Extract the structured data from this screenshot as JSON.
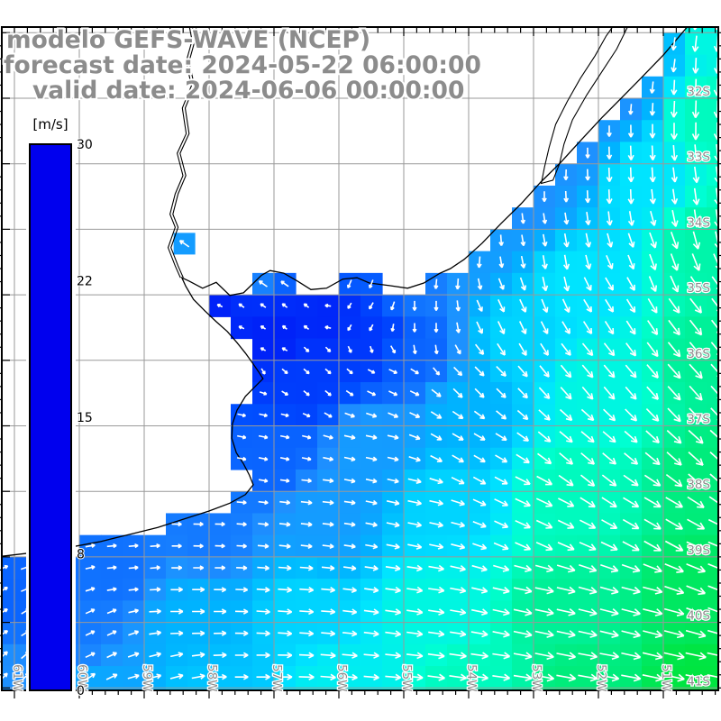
{
  "title": {
    "line1": "modelo GEFS-WAVE (NCEP)",
    "line2": "forecast date: 2024-05-22 06:00:00",
    "line3": "valid date: 2024-06-06 00:00:00",
    "color": "#8c8c8c"
  },
  "colorbar": {
    "unit_label": "[m/s]",
    "min": 0,
    "max": 30,
    "ticks": [
      {
        "label": "30",
        "value": 30
      },
      {
        "label": "22",
        "value": 22.5
      },
      {
        "label": "15",
        "value": 15
      },
      {
        "label": "8",
        "value": 7.5
      },
      {
        "label": "0",
        "value": 0
      }
    ],
    "stops": [
      [
        0,
        "#0000ee"
      ],
      [
        2,
        "#0022f8"
      ],
      [
        4,
        "#004eff"
      ],
      [
        5.5,
        "#1e90ff"
      ],
      [
        7,
        "#00b3ff"
      ],
      [
        8.5,
        "#00e4ff"
      ],
      [
        10,
        "#00ffd2"
      ],
      [
        11.5,
        "#00f096"
      ],
      [
        12.5,
        "#00e860"
      ],
      [
        14,
        "#00df00"
      ],
      [
        15.5,
        "#7dff00"
      ],
      [
        17,
        "#ffff00"
      ],
      [
        19,
        "#ffc800"
      ],
      [
        21,
        "#ff9400"
      ],
      [
        23,
        "#ff5200"
      ],
      [
        25,
        "#ff2000"
      ],
      [
        27,
        "#fb0030"
      ],
      [
        28.5,
        "#e30070"
      ],
      [
        30,
        "#c4009e"
      ]
    ]
  },
  "map": {
    "grid_color": "#999999",
    "label_color": "#8c8c8c",
    "lon_labels": [
      {
        "text": "61W",
        "lon": 61
      },
      {
        "text": "60W",
        "lon": 60
      },
      {
        "text": "59W",
        "lon": 59
      },
      {
        "text": "58W",
        "lon": 58
      },
      {
        "text": "57W",
        "lon": 57
      },
      {
        "text": "56W",
        "lon": 56
      },
      {
        "text": "55W",
        "lon": 55
      },
      {
        "text": "54W",
        "lon": 54
      },
      {
        "text": "53W",
        "lon": 53
      },
      {
        "text": "52W",
        "lon": 52
      },
      {
        "text": "51W",
        "lon": 51
      }
    ],
    "lat_labels": [
      {
        "text": "32S",
        "lat": 32
      },
      {
        "text": "33S",
        "lat": 33
      },
      {
        "text": "34S",
        "lat": 34
      },
      {
        "text": "35S",
        "lat": 35
      },
      {
        "text": "36S",
        "lat": 36
      },
      {
        "text": "37S",
        "lat": 37
      },
      {
        "text": "38S",
        "lat": 38
      },
      {
        "text": "39S",
        "lat": 39
      },
      {
        "text": "40S",
        "lat": 40
      },
      {
        "text": "41S",
        "lat": 41
      }
    ],
    "grid": {
      "lons": [
        61,
        60,
        59,
        58,
        57,
        56,
        55,
        54,
        53,
        52,
        51
      ],
      "lats": [
        31,
        32,
        33,
        34,
        35,
        36,
        37,
        38,
        39,
        40,
        41
      ],
      "minor_step": 0.2,
      "lon_range": [
        50.2,
        61.2
      ],
      "lat_range": [
        31.0,
        41.0
      ]
    },
    "coast": [
      [
        50.63,
        30.91
      ],
      [
        50.99,
        31.33
      ],
      [
        51.33,
        31.68
      ],
      [
        51.64,
        31.99
      ],
      [
        51.94,
        32.29
      ],
      [
        52.26,
        32.63
      ],
      [
        52.58,
        32.98
      ],
      [
        52.89,
        33.28
      ],
      [
        53.19,
        33.61
      ],
      [
        53.5,
        33.91
      ],
      [
        53.79,
        34.21
      ],
      [
        54.07,
        34.46
      ],
      [
        54.28,
        34.6
      ],
      [
        54.44,
        34.67
      ],
      [
        54.69,
        34.82
      ],
      [
        54.94,
        34.9
      ],
      [
        55.22,
        34.86
      ],
      [
        55.53,
        34.82
      ],
      [
        55.72,
        34.74
      ],
      [
        55.94,
        34.76
      ],
      [
        56.19,
        34.9
      ],
      [
        56.43,
        34.92
      ],
      [
        56.64,
        34.79
      ],
      [
        56.85,
        34.67
      ],
      [
        57.06,
        34.63
      ],
      [
        57.19,
        34.7
      ],
      [
        57.47,
        34.97
      ],
      [
        57.68,
        35.01
      ],
      [
        57.89,
        34.81
      ],
      [
        58.1,
        34.9
      ],
      [
        58.31,
        34.79
      ],
      [
        58.42,
        34.74
      ],
      [
        58.36,
        34.87
      ],
      [
        58.24,
        35.07
      ],
      [
        58.06,
        35.25
      ],
      [
        57.89,
        35.41
      ],
      [
        57.72,
        35.56
      ],
      [
        57.57,
        35.73
      ],
      [
        57.44,
        35.89
      ],
      [
        57.33,
        36.04
      ],
      [
        57.24,
        36.17
      ],
      [
        57.17,
        36.28
      ],
      [
        57.28,
        36.39
      ],
      [
        57.44,
        36.55
      ],
      [
        57.57,
        36.76
      ],
      [
        57.64,
        36.97
      ],
      [
        57.65,
        37.19
      ],
      [
        57.58,
        37.41
      ],
      [
        57.47,
        37.58
      ],
      [
        57.38,
        37.75
      ],
      [
        57.32,
        37.9
      ],
      [
        57.44,
        38.05
      ],
      [
        57.68,
        38.18
      ],
      [
        58.0,
        38.3
      ],
      [
        58.38,
        38.42
      ],
      [
        58.79,
        38.55
      ],
      [
        59.24,
        38.66
      ],
      [
        59.69,
        38.77
      ],
      [
        60.18,
        38.86
      ],
      [
        60.67,
        38.93
      ],
      [
        61.19,
        38.99
      ]
    ],
    "land_close": [
      61.19,
      30.91
    ],
    "river": [
      [
        58.28,
        30.91
      ],
      [
        58.24,
        31.12
      ],
      [
        58.33,
        31.44
      ],
      [
        58.25,
        31.81
      ],
      [
        58.39,
        32.15
      ],
      [
        58.33,
        32.54
      ],
      [
        58.47,
        32.84
      ],
      [
        58.38,
        33.18
      ],
      [
        58.5,
        33.46
      ],
      [
        58.58,
        33.77
      ],
      [
        58.5,
        33.97
      ],
      [
        58.61,
        34.28
      ],
      [
        58.5,
        34.56
      ],
      [
        58.42,
        34.74
      ]
    ],
    "lagoon": [
      [
        51.55,
        30.91
      ],
      [
        51.72,
        31.25
      ],
      [
        51.95,
        31.6
      ],
      [
        52.18,
        31.95
      ],
      [
        52.4,
        32.33
      ],
      [
        52.53,
        32.7
      ],
      [
        52.6,
        33.0
      ],
      [
        52.7,
        33.25
      ],
      [
        52.88,
        33.3
      ],
      [
        52.83,
        33.05
      ],
      [
        52.76,
        32.75
      ],
      [
        52.66,
        32.4
      ],
      [
        52.48,
        32.05
      ],
      [
        52.28,
        31.7
      ],
      [
        52.05,
        31.35
      ],
      [
        51.88,
        31.05
      ],
      [
        51.78,
        30.91
      ]
    ],
    "field": {
      "speed_points": [
        [
          58.2,
          34.35,
          6
        ],
        [
          57.2,
          34.45,
          5.5
        ],
        [
          56.1,
          34.6,
          4.5
        ],
        [
          54.9,
          34.75,
          5
        ],
        [
          58.0,
          35.2,
          2
        ],
        [
          57.0,
          35.6,
          2
        ],
        [
          56.2,
          35.3,
          2.2
        ],
        [
          55.5,
          35.7,
          3
        ],
        [
          56.6,
          36.3,
          3.2
        ],
        [
          54.9,
          35.9,
          4.5
        ],
        [
          54.0,
          34.3,
          6
        ],
        [
          53.2,
          33.5,
          5.5
        ],
        [
          52.4,
          32.7,
          5.5
        ],
        [
          51.8,
          31.9,
          5.5
        ],
        [
          51.2,
          31.1,
          6.5
        ],
        [
          50.4,
          31.0,
          9.5
        ],
        [
          50.3,
          32.3,
          10.5
        ],
        [
          51.4,
          33.2,
          8.5
        ],
        [
          50.3,
          34.3,
          11
        ],
        [
          52.3,
          34.8,
          8.5
        ],
        [
          53.2,
          35.6,
          8
        ],
        [
          50.3,
          36.0,
          11.5
        ],
        [
          52.0,
          36.4,
          9.5
        ],
        [
          54.0,
          36.8,
          7
        ],
        [
          55.5,
          37.3,
          6
        ],
        [
          57.0,
          37.5,
          4.5
        ],
        [
          50.3,
          37.8,
          12
        ],
        [
          52.4,
          38.0,
          10.5
        ],
        [
          54.4,
          38.2,
          8
        ],
        [
          56.3,
          38.4,
          6
        ],
        [
          58.0,
          38.6,
          5
        ],
        [
          59.5,
          39.2,
          4.8
        ],
        [
          61.0,
          39.6,
          4.5
        ],
        [
          60.0,
          40.2,
          5
        ],
        [
          61.2,
          40.9,
          5.5
        ],
        [
          59.8,
          41.0,
          6.5
        ],
        [
          58.2,
          40.0,
          7
        ],
        [
          56.5,
          39.8,
          8
        ],
        [
          54.5,
          39.8,
          9.5
        ],
        [
          52.5,
          39.8,
          11.5
        ],
        [
          50.4,
          39.5,
          12.5
        ],
        [
          58.0,
          41.0,
          7.5
        ],
        [
          56.0,
          41.0,
          9
        ],
        [
          54.0,
          41.0,
          10.5
        ],
        [
          52.3,
          41.0,
          12
        ],
        [
          50.4,
          41.0,
          13
        ]
      ],
      "dir_points": [
        [
          53.5,
          31.1,
          100
        ],
        [
          52.0,
          31.4,
          102
        ],
        [
          51.0,
          31.2,
          98
        ],
        [
          50.4,
          31.8,
          92
        ],
        [
          54.8,
          33.2,
          102
        ],
        [
          53.0,
          32.8,
          95
        ],
        [
          51.7,
          33.2,
          88
        ],
        [
          50.4,
          33.6,
          82
        ],
        [
          55.6,
          34.6,
          110
        ],
        [
          54.3,
          34.4,
          98
        ],
        [
          52.7,
          34.4,
          80
        ],
        [
          51.0,
          34.4,
          70
        ],
        [
          58.2,
          34.3,
          208
        ],
        [
          57.4,
          34.8,
          215
        ],
        [
          56.6,
          35.3,
          218
        ],
        [
          57.9,
          35.5,
          200
        ],
        [
          57.5,
          34.9,
          215
        ],
        [
          55.6,
          35.2,
          120
        ],
        [
          54.7,
          35.4,
          90
        ],
        [
          53.5,
          35.3,
          65
        ],
        [
          51.8,
          35.2,
          58
        ],
        [
          50.4,
          35.3,
          52
        ],
        [
          56.3,
          36.2,
          40
        ],
        [
          55.2,
          36.4,
          25
        ],
        [
          53.8,
          36.3,
          45
        ],
        [
          52.0,
          36.2,
          50
        ],
        [
          50.4,
          36.4,
          48
        ],
        [
          57.0,
          37.2,
          12
        ],
        [
          55.5,
          37.3,
          12
        ],
        [
          54.0,
          37.3,
          30
        ],
        [
          52.2,
          37.3,
          40
        ],
        [
          50.4,
          37.4,
          42
        ],
        [
          58.3,
          38.3,
          2
        ],
        [
          56.5,
          38.2,
          6
        ],
        [
          54.8,
          38.3,
          12
        ],
        [
          53.0,
          38.4,
          25
        ],
        [
          51.0,
          38.5,
          30
        ],
        [
          50.4,
          39.2,
          22
        ],
        [
          60.5,
          39.2,
          -18
        ],
        [
          59.2,
          39.0,
          -5
        ],
        [
          61.2,
          39.9,
          -32
        ],
        [
          59.8,
          40.3,
          -25
        ],
        [
          58.3,
          39.7,
          0
        ],
        [
          56.8,
          39.6,
          4
        ],
        [
          55.0,
          39.6,
          8
        ],
        [
          53.0,
          39.7,
          12
        ],
        [
          51.3,
          39.8,
          14
        ],
        [
          61.2,
          40.9,
          -45
        ],
        [
          60.2,
          41.0,
          -38
        ],
        [
          58.8,
          41.0,
          -15
        ],
        [
          57.3,
          41.0,
          0
        ],
        [
          55.5,
          41.0,
          5
        ],
        [
          53.8,
          41.0,
          8
        ],
        [
          52.0,
          41.0,
          10
        ],
        [
          50.4,
          41.0,
          12
        ]
      ],
      "extra_cells": [
        {
          "lonW": 58.38,
          "latS": 34.22,
          "v": 6,
          "dir": 215
        }
      ]
    }
  }
}
